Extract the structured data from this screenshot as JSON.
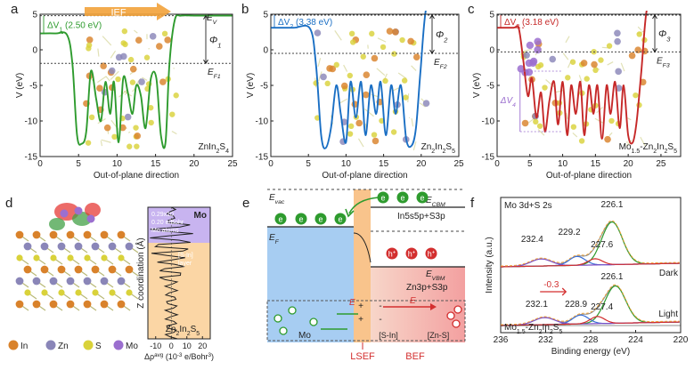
{
  "panels": {
    "a": {
      "letter": "a",
      "system": "ZnIn2S4",
      "annotations": {
        "arrow": "IEF",
        "ev": "E",
        "ev_sub": "V",
        "delta": "ΔV",
        "delta_sub": "1",
        "delta_val": "(2.50 eV)",
        "phi": "Φ",
        "phi_sub": "1",
        "ef": "E",
        "ef_sub": "F1"
      },
      "sys_parts": [
        "ZnIn",
        "2",
        "S",
        "4"
      ]
    },
    "b": {
      "letter": "b",
      "annotations": {
        "delta": "ΔV",
        "delta_sub": "2",
        "delta_val": "(3.38 eV)",
        "phi": "Φ",
        "phi_sub": "2",
        "ef": "E",
        "ef_sub": "F2"
      },
      "sys_parts": [
        "Zn",
        "2",
        "In",
        "2",
        "S",
        "5"
      ]
    },
    "c": {
      "letter": "c",
      "annotations": {
        "delta": "ΔV",
        "delta_sub": "3",
        "delta_val": "(3.18 eV)",
        "phi": "Φ",
        "phi_sub": "3",
        "ef": "E",
        "ef_sub": "F3",
        "delta4": "ΔV",
        "delta4_sub": "4"
      },
      "sys_parts": [
        "Mo",
        "1.5",
        "-Zn",
        "2",
        "In",
        "2",
        "S",
        "5"
      ]
    },
    "d": {
      "letter": "d",
      "legend": [
        {
          "label": "In",
          "color": "#d9822b"
        },
        {
          "label": "Zn",
          "color": "#8a86b8"
        },
        {
          "label": "S",
          "color": "#d9d23a"
        },
        {
          "label": "Mo",
          "color": "#9b6fcf"
        }
      ],
      "cdd": {
        "ylabel": "Z coordination (Å)",
        "xlabel_parts": [
          "Δρ",
          "avg",
          " (10",
          "-3",
          " e/Bohr",
          "3",
          ")"
        ],
        "xticks": [
          "-10",
          "0",
          "10",
          "20"
        ],
        "region_top": "Mo",
        "region_bottom_parts": [
          "Zn",
          "2",
          "In",
          "2",
          "S",
          "5"
        ],
        "annot1_lines": [
          "0.29x10",
          "0.20 e/Bohr",
          "Mo atoms"
        ],
        "annot2_lines": [
          "[S-In]",
          "layer"
        ]
      }
    },
    "e": {
      "letter": "e",
      "evac": "E",
      "evac_sub": "vac",
      "ecbm": "E",
      "ecbm_sub": "CBM",
      "cb_orbitals": "In5s5p+S3p",
      "ef": "E",
      "ef_sub": "F",
      "evbm": "E",
      "evbm_sub": "VBM",
      "vb_orbitals": "Zn3p+S3p",
      "electron": "e",
      "hole": "h",
      "hole_sup": "+",
      "metal": "Mo",
      "layer1": "[S-In]",
      "layer2": "[Zn-S]",
      "field1": "E",
      "field2": "E",
      "lsef": "LSEF",
      "bef": "BEF"
    },
    "f": {
      "letter": "f",
      "title": "Mo 3d+S 2s",
      "dark_label": "Dark",
      "light_label": "Light",
      "shift": "-0.3",
      "sample_parts": [
        "Mo",
        "1.5",
        "-Zn",
        "2",
        "In",
        "2",
        "S",
        "5"
      ],
      "dark_peaks": [
        "226.1",
        "229.2",
        "232.4",
        "227.6"
      ],
      "light_peaks": [
        "226.1",
        "228.9",
        "232.1",
        "227.4"
      ]
    }
  },
  "chart_data": [
    {
      "type": "line",
      "panel": "a",
      "xlabel": "Out-of-plane direction",
      "ylabel": "V (eV)",
      "xlim": [
        0,
        25
      ],
      "ylim": [
        -15,
        5
      ],
      "xticks": [
        0,
        5,
        10,
        15,
        20,
        25
      ],
      "yticks": [
        -15,
        -10,
        -5,
        0,
        5
      ],
      "line_color": "#2e9b2e",
      "vacuum_level": 4.8,
      "fermi_level": -1.9,
      "x": [
        0,
        2,
        3.5,
        4.2,
        4.8,
        5.4,
        6.0,
        6.6,
        7.3,
        7.9,
        8.5,
        9.1,
        9.6,
        10.2,
        10.8,
        11.4,
        12.0,
        12.5,
        13.1,
        13.7,
        14.4,
        15.1,
        15.7,
        16.3,
        16.8,
        17.5,
        18.3,
        20,
        25
      ],
      "y": [
        2.3,
        2.3,
        2.1,
        -2,
        -12,
        -13.2,
        -11.5,
        -3,
        -7,
        -10,
        -4.5,
        -9,
        -4.5,
        -13,
        -4,
        -6,
        -9,
        -5,
        -6.5,
        -11,
        -4,
        -4,
        -12,
        -13,
        -2,
        4.2,
        4.8,
        4.8,
        4.8
      ]
    },
    {
      "type": "line",
      "panel": "b",
      "xlabel": "Out-of-plane direction",
      "ylabel": "V (eV)",
      "xlim": [
        0,
        25
      ],
      "ylim": [
        -15,
        5
      ],
      "xticks": [
        0,
        5,
        10,
        15,
        20,
        25
      ],
      "yticks": [
        -15,
        -10,
        -5,
        0,
        5
      ],
      "line_color": "#1a6fc4",
      "vacuum_level": 6.5,
      "fermi_level": -0.5,
      "x": [
        0,
        3,
        5.2,
        6.0,
        6.7,
        7.3,
        8.0,
        8.7,
        9.3,
        10.0,
        10.6,
        11.3,
        12.0,
        12.6,
        13.3,
        14.0,
        14.6,
        15.3,
        16.0,
        16.6,
        17.3,
        18.0,
        18.7,
        19.3,
        19.9,
        20.6,
        21.5,
        23,
        25
      ],
      "y": [
        3.1,
        3.1,
        3.0,
        -2,
        -12,
        -13.8,
        -11,
        -5,
        -9,
        -13,
        -4.5,
        -9.5,
        -4.5,
        -12,
        -5,
        -9,
        -4.5,
        -12,
        -5,
        -9,
        -5,
        -12.5,
        -13.5,
        -11,
        -3,
        5.5,
        6.5,
        6.5,
        6.5
      ]
    },
    {
      "type": "line",
      "panel": "c",
      "xlabel": "Out-of-plane direction",
      "ylabel": "V (eV)",
      "xlim": [
        0,
        28
      ],
      "ylim": [
        -15,
        5
      ],
      "xticks": [
        0,
        5,
        10,
        15,
        20,
        25
      ],
      "yticks": [
        -15,
        -10,
        -5,
        0,
        5
      ],
      "line_color": "#c62828",
      "vacuum_level": 6.3,
      "fermi_level": -0.3,
      "x": [
        0,
        2.5,
        3.3,
        4.0,
        4.7,
        5.3,
        6.0,
        6.7,
        7.3,
        8.0,
        8.7,
        9.3,
        10.0,
        10.7,
        11.3,
        12.0,
        12.7,
        13.3,
        14.0,
        14.7,
        15.3,
        16.0,
        16.7,
        17.3,
        18.0,
        18.7,
        19.3,
        20.0,
        20.7,
        21.3,
        22.0,
        22.8,
        23.8,
        25,
        28
      ],
      "y": [
        3.1,
        3.1,
        3.0,
        -1.5,
        -6.5,
        -4,
        -9.5,
        -6,
        -11.5,
        -7,
        -4.5,
        -10.5,
        -4.5,
        -12,
        -5,
        -9,
        -4.5,
        -12,
        -5,
        -9,
        -5,
        -12.5,
        -5,
        -9,
        -4.5,
        -11,
        -5,
        -12,
        -13,
        -10,
        -3,
        5.4,
        6.3,
        6.3,
        6.3
      ]
    },
    {
      "type": "line",
      "panel": "f",
      "xlabel": "Binding energy (eV)",
      "ylabel": "Intensity (a.u.)",
      "xlim": [
        236,
        220
      ],
      "xticks": [
        236,
        232,
        228,
        224,
        220
      ]
    }
  ]
}
